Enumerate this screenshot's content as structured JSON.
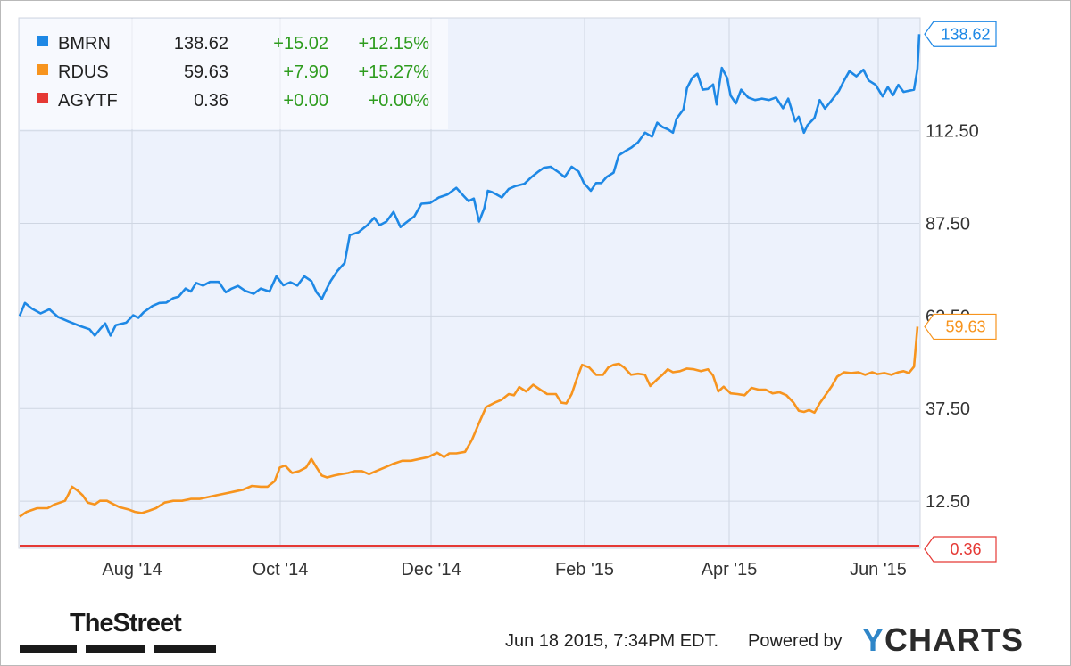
{
  "chart_data": {
    "type": "line",
    "x_tick_labels": [
      "Aug '14",
      "Oct '14",
      "Dec '14",
      "Feb '15",
      "Apr '15",
      "Jun '15"
    ],
    "y_tick_labels": [
      "12.50",
      "37.50",
      "62.50",
      "87.50",
      "112.50"
    ],
    "y_ticks": [
      12.5,
      37.5,
      62.5,
      87.5,
      112.5
    ],
    "ylim": [
      0,
      143
    ],
    "grid": true,
    "legend_position": "top-left",
    "series": [
      {
        "name": "BMRN",
        "color": "#1e88e5",
        "last": "138.62",
        "change": "+15.02",
        "pct_change": "+12.15%",
        "end_label": "138.62",
        "points": [
          [
            0,
            62.5
          ],
          [
            6,
            66.0
          ],
          [
            14,
            64.5
          ],
          [
            24,
            63.2
          ],
          [
            34,
            64.3
          ],
          [
            44,
            62.2
          ],
          [
            56,
            61.0
          ],
          [
            70,
            59.7
          ],
          [
            80,
            58.9
          ],
          [
            86,
            57.2
          ],
          [
            92,
            58.9
          ],
          [
            98,
            60.5
          ],
          [
            104,
            57.2
          ],
          [
            110,
            60.0
          ],
          [
            122,
            60.7
          ],
          [
            130,
            62.7
          ],
          [
            136,
            62.0
          ],
          [
            142,
            63.5
          ],
          [
            152,
            65.2
          ],
          [
            160,
            66.0
          ],
          [
            168,
            66.1
          ],
          [
            176,
            67.3
          ],
          [
            182,
            67.7
          ],
          [
            190,
            69.9
          ],
          [
            196,
            69.1
          ],
          [
            202,
            71.4
          ],
          [
            210,
            70.7
          ],
          [
            218,
            71.7
          ],
          [
            228,
            71.7
          ],
          [
            236,
            68.9
          ],
          [
            242,
            69.8
          ],
          [
            250,
            70.6
          ],
          [
            258,
            69.3
          ],
          [
            268,
            68.5
          ],
          [
            276,
            69.9
          ],
          [
            286,
            69.1
          ],
          [
            294,
            73.2
          ],
          [
            302,
            70.8
          ],
          [
            310,
            71.6
          ],
          [
            318,
            70.7
          ],
          [
            326,
            73.2
          ],
          [
            334,
            71.9
          ],
          [
            340,
            68.9
          ],
          [
            346,
            67.1
          ],
          [
            350,
            69.1
          ],
          [
            356,
            71.9
          ],
          [
            364,
            74.7
          ],
          [
            372,
            76.8
          ],
          [
            378,
            84.3
          ],
          [
            388,
            85.1
          ],
          [
            398,
            87.0
          ],
          [
            406,
            89.0
          ],
          [
            412,
            87.0
          ],
          [
            420,
            88.0
          ],
          [
            428,
            90.6
          ],
          [
            436,
            86.5
          ],
          [
            444,
            88.0
          ],
          [
            452,
            89.4
          ],
          [
            460,
            92.8
          ],
          [
            470,
            93.0
          ],
          [
            480,
            94.5
          ],
          [
            490,
            95.3
          ],
          [
            500,
            97.1
          ],
          [
            508,
            95.0
          ],
          [
            514,
            93.5
          ],
          [
            520,
            94.2
          ],
          [
            526,
            88.0
          ],
          [
            532,
            91.6
          ],
          [
            536,
            96.3
          ],
          [
            540,
            96.0
          ],
          [
            546,
            95.3
          ],
          [
            552,
            94.5
          ],
          [
            560,
            96.8
          ],
          [
            568,
            97.6
          ],
          [
            578,
            98.2
          ],
          [
            586,
            100.0
          ],
          [
            594,
            101.5
          ],
          [
            600,
            102.5
          ],
          [
            608,
            102.8
          ],
          [
            616,
            101.5
          ],
          [
            624,
            100.0
          ],
          [
            632,
            102.8
          ],
          [
            640,
            101.5
          ],
          [
            646,
            98.4
          ],
          [
            654,
            96.3
          ],
          [
            660,
            98.4
          ],
          [
            666,
            98.4
          ],
          [
            672,
            100.0
          ],
          [
            680,
            101.2
          ],
          [
            686,
            105.9
          ],
          [
            694,
            107.1
          ],
          [
            700,
            107.9
          ],
          [
            708,
            109.4
          ],
          [
            716,
            112.0
          ],
          [
            724,
            110.9
          ],
          [
            730,
            114.7
          ],
          [
            736,
            113.5
          ],
          [
            742,
            112.9
          ],
          [
            748,
            112.0
          ],
          [
            752,
            115.7
          ],
          [
            760,
            118.3
          ],
          [
            764,
            124.0
          ],
          [
            770,
            126.8
          ],
          [
            776,
            127.9
          ],
          [
            782,
            123.6
          ],
          [
            788,
            123.8
          ],
          [
            794,
            125.0
          ],
          [
            798,
            119.6
          ],
          [
            800,
            123.3
          ],
          [
            804,
            129.5
          ],
          [
            810,
            126.8
          ],
          [
            814,
            122.0
          ],
          [
            820,
            119.9
          ],
          [
            826,
            123.6
          ],
          [
            834,
            121.5
          ],
          [
            842,
            120.8
          ],
          [
            850,
            121.2
          ],
          [
            858,
            120.8
          ],
          [
            866,
            121.5
          ],
          [
            874,
            118.6
          ],
          [
            880,
            121.2
          ],
          [
            888,
            115.0
          ],
          [
            892,
            116.3
          ],
          [
            898,
            112.0
          ],
          [
            902,
            114.0
          ],
          [
            910,
            116.0
          ],
          [
            916,
            120.8
          ],
          [
            922,
            118.5
          ],
          [
            930,
            120.8
          ],
          [
            938,
            123.3
          ],
          [
            944,
            126.1
          ],
          [
            950,
            128.6
          ],
          [
            958,
            127.2
          ],
          [
            966,
            129.0
          ],
          [
            972,
            126.1
          ],
          [
            980,
            124.9
          ],
          [
            988,
            121.8
          ],
          [
            994,
            124.3
          ],
          [
            1000,
            122.1
          ],
          [
            1006,
            124.9
          ],
          [
            1012,
            123.0
          ],
          [
            1018,
            123.3
          ],
          [
            1024,
            123.6
          ],
          [
            1028,
            129.3
          ],
          [
            1030,
            138.6
          ]
        ]
      },
      {
        "name": "RDUS",
        "color": "#f7941e",
        "last": "59.63",
        "change": "+7.90",
        "pct_change": "+15.27%",
        "end_label": "59.63",
        "points": [
          [
            0,
            8.3
          ],
          [
            8,
            9.6
          ],
          [
            20,
            10.6
          ],
          [
            32,
            10.6
          ],
          [
            40,
            11.6
          ],
          [
            52,
            12.6
          ],
          [
            56,
            14.4
          ],
          [
            60,
            16.4
          ],
          [
            66,
            15.4
          ],
          [
            72,
            14.1
          ],
          [
            78,
            12.1
          ],
          [
            86,
            11.6
          ],
          [
            92,
            12.6
          ],
          [
            100,
            12.6
          ],
          [
            108,
            11.6
          ],
          [
            114,
            10.9
          ],
          [
            124,
            10.3
          ],
          [
            132,
            9.6
          ],
          [
            140,
            9.3
          ],
          [
            148,
            9.9
          ],
          [
            156,
            10.6
          ],
          [
            166,
            12.1
          ],
          [
            176,
            12.6
          ],
          [
            186,
            12.6
          ],
          [
            196,
            13.1
          ],
          [
            206,
            13.1
          ],
          [
            216,
            13.6
          ],
          [
            226,
            14.1
          ],
          [
            236,
            14.6
          ],
          [
            246,
            15.1
          ],
          [
            256,
            15.6
          ],
          [
            266,
            16.6
          ],
          [
            276,
            16.4
          ],
          [
            284,
            16.4
          ],
          [
            292,
            17.9
          ],
          [
            298,
            21.6
          ],
          [
            304,
            22.1
          ],
          [
            312,
            20.1
          ],
          [
            320,
            20.6
          ],
          [
            328,
            21.6
          ],
          [
            334,
            23.9
          ],
          [
            340,
            21.6
          ],
          [
            346,
            19.4
          ],
          [
            352,
            18.9
          ],
          [
            360,
            19.4
          ],
          [
            368,
            19.8
          ],
          [
            376,
            20.1
          ],
          [
            384,
            20.6
          ],
          [
            392,
            20.6
          ],
          [
            400,
            19.8
          ],
          [
            408,
            20.6
          ],
          [
            418,
            21.6
          ],
          [
            428,
            22.6
          ],
          [
            438,
            23.4
          ],
          [
            448,
            23.4
          ],
          [
            458,
            23.9
          ],
          [
            468,
            24.4
          ],
          [
            478,
            25.6
          ],
          [
            486,
            24.4
          ],
          [
            492,
            25.4
          ],
          [
            500,
            25.4
          ],
          [
            510,
            25.8
          ],
          [
            518,
            29.1
          ],
          [
            526,
            33.6
          ],
          [
            534,
            37.9
          ],
          [
            544,
            39.1
          ],
          [
            552,
            39.9
          ],
          [
            560,
            41.4
          ],
          [
            566,
            41.1
          ],
          [
            572,
            43.3
          ],
          [
            580,
            42.1
          ],
          [
            588,
            43.9
          ],
          [
            596,
            42.6
          ],
          [
            604,
            41.4
          ],
          [
            614,
            41.4
          ],
          [
            620,
            39.1
          ],
          [
            626,
            38.9
          ],
          [
            632,
            41.4
          ],
          [
            638,
            45.6
          ],
          [
            644,
            49.3
          ],
          [
            652,
            48.6
          ],
          [
            660,
            46.6
          ],
          [
            668,
            46.6
          ],
          [
            674,
            48.6
          ],
          [
            680,
            49.3
          ],
          [
            686,
            49.6
          ],
          [
            692,
            48.6
          ],
          [
            700,
            46.6
          ],
          [
            708,
            46.9
          ],
          [
            716,
            46.6
          ],
          [
            722,
            43.6
          ],
          [
            730,
            45.4
          ],
          [
            736,
            46.6
          ],
          [
            742,
            48.1
          ],
          [
            748,
            47.3
          ],
          [
            756,
            47.6
          ],
          [
            764,
            48.3
          ],
          [
            772,
            48.1
          ],
          [
            780,
            47.6
          ],
          [
            788,
            48.1
          ],
          [
            794,
            46.4
          ],
          [
            800,
            42.1
          ],
          [
            806,
            43.4
          ],
          [
            814,
            41.6
          ],
          [
            822,
            41.4
          ],
          [
            830,
            41.1
          ],
          [
            838,
            43.1
          ],
          [
            846,
            42.6
          ],
          [
            854,
            42.6
          ],
          [
            862,
            41.6
          ],
          [
            870,
            41.9
          ],
          [
            878,
            41.1
          ],
          [
            886,
            39.1
          ],
          [
            892,
            36.9
          ],
          [
            898,
            36.6
          ],
          [
            904,
            37.1
          ],
          [
            910,
            36.4
          ],
          [
            916,
            38.9
          ],
          [
            922,
            40.9
          ],
          [
            930,
            43.6
          ],
          [
            936,
            46.1
          ],
          [
            944,
            47.3
          ],
          [
            952,
            47.1
          ],
          [
            960,
            47.3
          ],
          [
            968,
            46.6
          ],
          [
            976,
            47.3
          ],
          [
            982,
            46.8
          ],
          [
            990,
            47.1
          ],
          [
            998,
            46.6
          ],
          [
            1006,
            47.3
          ],
          [
            1012,
            47.6
          ],
          [
            1018,
            47.1
          ],
          [
            1024,
            48.8
          ],
          [
            1028,
            59.6
          ]
        ]
      },
      {
        "name": "AGYTF",
        "color": "#e53935",
        "last": "0.36",
        "change": "+0.00",
        "pct_change": "+0.00%",
        "end_label": "0.36",
        "points": [
          [
            0,
            0.36
          ],
          [
            1030,
            0.36
          ]
        ]
      }
    ]
  },
  "footer": {
    "timestamp": "Jun 18 2015, 7:34PM EDT.",
    "powered_by": "Powered by",
    "ycharts_y": "Y",
    "ycharts_rest": "CHARTS",
    "thestreet": "TheStreet"
  }
}
